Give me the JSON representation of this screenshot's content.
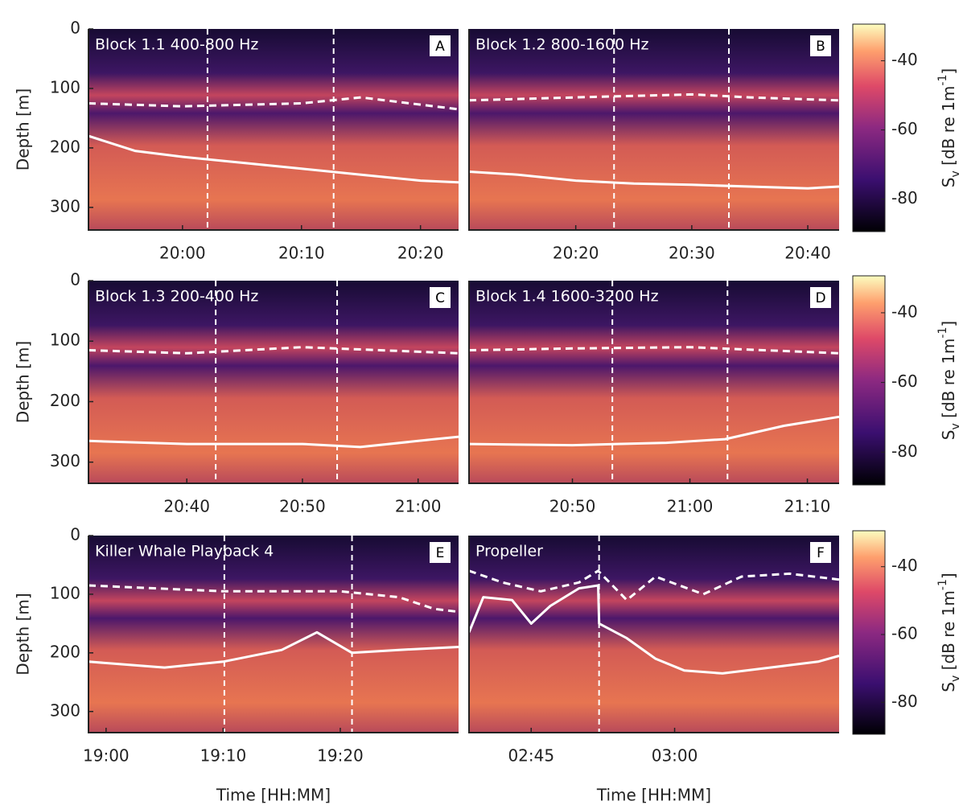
{
  "chart_data": [
    {
      "type": "echogram",
      "title": "Block 1.1 400-800 Hz",
      "letter": "A",
      "ylabel": "Depth [m]",
      "xlim": [
        1192.1,
        1223.2
      ],
      "xticks": [
        {
          "value": 1200,
          "label": "20:00"
        },
        {
          "value": 1210,
          "label": "20:10"
        },
        {
          "value": 1220,
          "label": "20:20"
        }
      ],
      "ylim": [
        338,
        0
      ],
      "yticks": [
        0,
        100,
        200,
        300
      ],
      "vlines": [
        1202.1,
        1212.7
      ],
      "lines": [
        {
          "color": "#ffffff",
          "dashed": true,
          "x": [
            1192.1,
            1200,
            1210,
            1215,
            1223.2
          ],
          "y": [
            125,
            130,
            125,
            115,
            135
          ]
        },
        {
          "color": "#ffffff",
          "dashed": false,
          "x": [
            1192.1,
            1196,
            1200,
            1205,
            1210,
            1215,
            1220,
            1223.2
          ],
          "y": [
            180,
            205,
            215,
            225,
            235,
            245,
            255,
            258
          ]
        }
      ]
    },
    {
      "type": "echogram",
      "title": "Block 1.2 800-1600 Hz",
      "letter": "B",
      "xlim": [
        1210.8,
        1242.7
      ],
      "xticks": [
        {
          "value": 1220,
          "label": "20:20"
        },
        {
          "value": 1230,
          "label": "20:30"
        },
        {
          "value": 1240,
          "label": "20:40"
        }
      ],
      "ylim": [
        338,
        0
      ],
      "vlines": [
        1223.3,
        1233.2
      ],
      "lines": [
        {
          "color": "#ffffff",
          "dashed": true,
          "x": [
            1210.8,
            1220,
            1230,
            1235,
            1242.7
          ],
          "y": [
            120,
            115,
            110,
            115,
            120
          ]
        },
        {
          "color": "#ffffff",
          "dashed": false,
          "x": [
            1210.8,
            1215,
            1220,
            1225,
            1230,
            1235,
            1240,
            1242.7
          ],
          "y": [
            240,
            245,
            255,
            260,
            262,
            265,
            268,
            265
          ]
        }
      ],
      "colorbar": {
        "label": [
          "S",
          "v",
          " [dB re 1m",
          "-1",
          "]"
        ],
        "clim": [
          -89.4,
          -29.4
        ],
        "ticks": [
          -40,
          -60,
          -80
        ]
      }
    },
    {
      "type": "echogram",
      "title": "Block 1.3 200-400 Hz",
      "letter": "C",
      "ylabel": "Depth [m]",
      "xlim": [
        1231.5,
        1263.5
      ],
      "xticks": [
        {
          "value": 1240,
          "label": "20:40"
        },
        {
          "value": 1250,
          "label": "20:50"
        },
        {
          "value": 1260,
          "label": "21:00"
        }
      ],
      "ylim": [
        335,
        0
      ],
      "yticks": [
        0,
        100,
        200,
        300
      ],
      "vlines": [
        1242.5,
        1253
      ],
      "lines": [
        {
          "color": "#ffffff",
          "dashed": true,
          "x": [
            1231.5,
            1240,
            1250,
            1263.5
          ],
          "y": [
            115,
            120,
            110,
            120
          ]
        },
        {
          "color": "#ffffff",
          "dashed": false,
          "x": [
            1231.5,
            1240,
            1250,
            1255,
            1260,
            1263.5
          ],
          "y": [
            265,
            270,
            270,
            275,
            265,
            258
          ]
        }
      ]
    },
    {
      "type": "echogram",
      "title": "Block 1.4 1600-3200 Hz",
      "letter": "D",
      "xlim": [
        1241.2,
        1272.7
      ],
      "xticks": [
        {
          "value": 1250,
          "label": "20:50"
        },
        {
          "value": 1260,
          "label": "21:00"
        },
        {
          "value": 1270,
          "label": "21:10"
        }
      ],
      "ylim": [
        335,
        0
      ],
      "vlines": [
        1253.4,
        1263.2
      ],
      "lines": [
        {
          "color": "#ffffff",
          "dashed": true,
          "x": [
            1241.2,
            1250,
            1260,
            1272.7
          ],
          "y": [
            115,
            112,
            110,
            120
          ]
        },
        {
          "color": "#ffffff",
          "dashed": false,
          "x": [
            1241.2,
            1250,
            1258,
            1263,
            1268,
            1272.7
          ],
          "y": [
            270,
            272,
            268,
            262,
            240,
            225
          ]
        }
      ],
      "colorbar": {
        "label": [
          "S",
          "v",
          " [dB re 1m",
          "-1",
          "]"
        ],
        "clim": [
          -89.4,
          -29.4
        ],
        "ticks": [
          -40,
          -60,
          -80
        ]
      }
    },
    {
      "type": "echogram",
      "title": "Killer Whale Playback 4",
      "letter": "E",
      "ylabel": "Depth [m]",
      "xlabel": "Time [HH:MM]",
      "xlim": [
        1138.5,
        1170.1
      ],
      "xticks": [
        {
          "value": 1140,
          "label": "19:00"
        },
        {
          "value": 1150,
          "label": "19:10"
        },
        {
          "value": 1160,
          "label": "19:20"
        }
      ],
      "ylim": [
        336,
        0
      ],
      "yticks": [
        0,
        100,
        200,
        300
      ],
      "vlines": [
        1150.1,
        1161
      ],
      "lines": [
        {
          "color": "#ffffff",
          "dashed": true,
          "x": [
            1138.5,
            1150,
            1160,
            1165,
            1168,
            1170.1
          ],
          "y": [
            85,
            95,
            95,
            105,
            125,
            130
          ]
        },
        {
          "color": "#ffffff",
          "dashed": false,
          "x": [
            1138.5,
            1145,
            1150,
            1155,
            1158,
            1161,
            1165,
            1170.1
          ],
          "y": [
            215,
            225,
            215,
            195,
            165,
            200,
            195,
            190
          ]
        }
      ]
    },
    {
      "type": "echogram",
      "title": "Propeller",
      "letter": "F",
      "xlabel": "Time [HH:MM]",
      "xlim": [
        158.5,
        197.2
      ],
      "xticks": [
        {
          "value": 165,
          "label": "02:45"
        },
        {
          "value": 180,
          "label": "03:00"
        }
      ],
      "ylim": [
        336,
        0
      ],
      "vlines": [
        172.1
      ],
      "lines": [
        {
          "color": "#ffffff",
          "dashed": true,
          "x": [
            158.5,
            162,
            166,
            170,
            172,
            175,
            178,
            183,
            187,
            192,
            197.2
          ],
          "y": [
            60,
            80,
            95,
            80,
            60,
            110,
            70,
            100,
            70,
            65,
            75
          ]
        },
        {
          "color": "#ffffff",
          "dashed": false,
          "x": [
            158.5,
            160,
            163,
            165,
            167,
            170,
            172,
            172.1,
            175,
            178,
            181,
            185,
            190,
            195,
            197.2
          ],
          "y": [
            165,
            105,
            110,
            150,
            120,
            90,
            85,
            150,
            175,
            210,
            230,
            235,
            225,
            215,
            205
          ]
        }
      ],
      "colorbar": {
        "label": [
          "S",
          "v",
          " [dB re 1m",
          "-1",
          "]"
        ],
        "clim": [
          -89.4,
          -29.4
        ],
        "ticks": [
          -40,
          -60,
          -80
        ]
      }
    }
  ]
}
